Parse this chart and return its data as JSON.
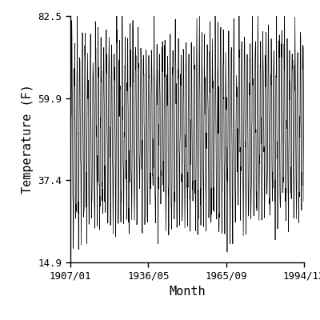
{
  "title": "",
  "xlabel": "Month",
  "ylabel": "Temperature (F)",
  "ylim": [
    14.9,
    82.5
  ],
  "yticks": [
    14.9,
    37.4,
    59.9,
    82.5
  ],
  "xtick_labels": [
    "1907/01",
    "1936/05",
    "1965/09",
    "1994/12"
  ],
  "line_color": "#000000",
  "line_width": 0.5,
  "background_color": "#ffffff",
  "mean_temp": 51.0,
  "annual_amplitude": 21.5,
  "noise_std": 6.0,
  "font_family": "monospace",
  "font_size_ticks": 9,
  "font_size_labels": 11
}
